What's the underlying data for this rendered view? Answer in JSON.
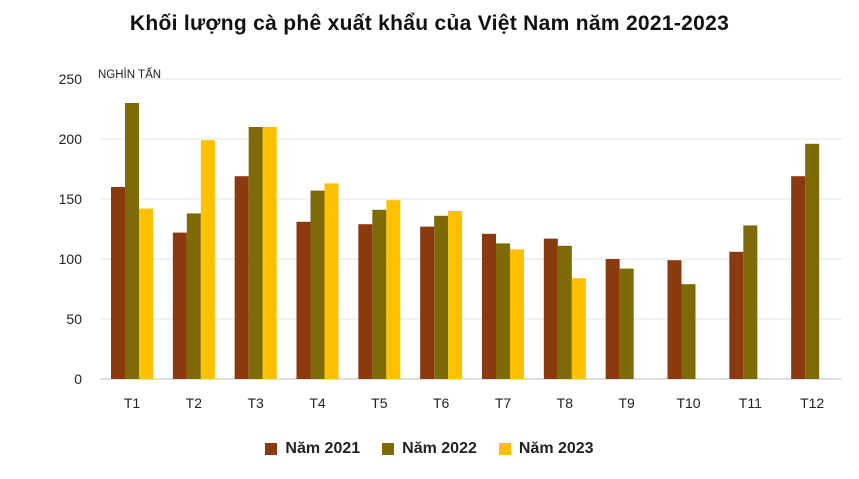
{
  "chart_data": {
    "type": "bar",
    "title": "Khối lượng cà phê xuất khẩu của Việt Nam năm 2021-2023",
    "unit_label": "NGHÌN TẤN",
    "categories": [
      "T1",
      "T2",
      "T3",
      "T4",
      "T5",
      "T6",
      "T7",
      "T8",
      "T9",
      "T10",
      "T11",
      "T12"
    ],
    "series": [
      {
        "name": "Năm 2021",
        "color": "#8B3A0F",
        "values": [
          160,
          122,
          169,
          131,
          129,
          127,
          121,
          117,
          100,
          99,
          106,
          169
        ]
      },
      {
        "name": "Năm 2022",
        "color": "#7F6A08",
        "values": [
          230,
          138,
          210,
          157,
          141,
          136,
          113,
          111,
          92,
          79,
          128,
          196
        ]
      },
      {
        "name": "Năm 2023",
        "color": "#FFC000",
        "values": [
          142,
          199,
          210,
          163,
          149,
          140,
          108,
          84,
          null,
          null,
          null,
          null
        ]
      }
    ],
    "ylim": [
      0,
      250
    ],
    "yticks": [
      0,
      50,
      100,
      150,
      200,
      250
    ],
    "grid": true,
    "legend_position": "bottom"
  }
}
